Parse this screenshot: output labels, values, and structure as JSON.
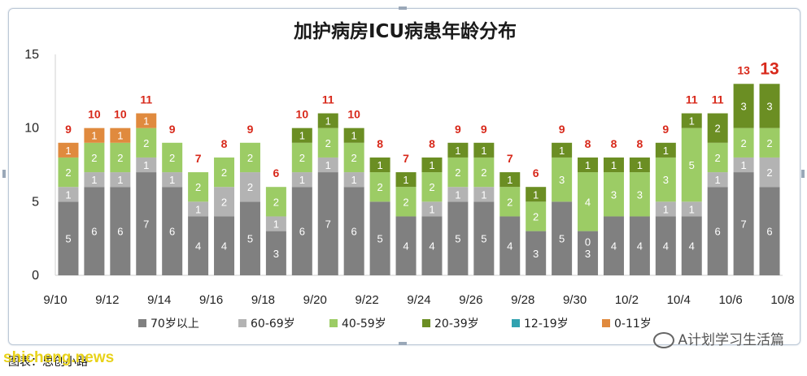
{
  "chart_data": {
    "type": "bar",
    "stacked": true,
    "title": "加护病房ICU病患年龄分布",
    "ylim": [
      0,
      15
    ],
    "yticks": [
      0,
      5,
      10,
      15
    ],
    "grid": false,
    "legend_position": "bottom",
    "x_tick_labels": [
      "9/10",
      "9/12",
      "9/14",
      "9/16",
      "9/18",
      "9/20",
      "9/22",
      "9/24",
      "9/26",
      "9/28",
      "9/30",
      "10/2",
      "10/4",
      "10/6",
      "10/8"
    ],
    "categories": [
      "9/10",
      "9/11",
      "9/12",
      "9/13",
      "9/14",
      "9/15",
      "9/16",
      "9/17",
      "9/18",
      "9/19",
      "9/20",
      "9/21",
      "9/22",
      "9/23",
      "9/24",
      "9/25",
      "9/26",
      "9/27",
      "9/28",
      "9/29",
      "9/30",
      "10/1",
      "10/2",
      "10/3",
      "10/4",
      "10/5",
      "10/6",
      "10/7"
    ],
    "series": [
      {
        "name": "70岁以上",
        "color": "#808080",
        "values": [
          5,
          6,
          6,
          7,
          6,
          4,
          4,
          5,
          3,
          6,
          7,
          6,
          5,
          4,
          4,
          5,
          5,
          4,
          3,
          5,
          3,
          4,
          4,
          4,
          4,
          6,
          7,
          6
        ]
      },
      {
        "name": "60-69岁",
        "color": "#b3b3b3",
        "values": [
          1,
          1,
          1,
          1,
          1,
          1,
          2,
          2,
          1,
          1,
          1,
          1,
          0,
          0,
          1,
          1,
          1,
          0,
          0,
          0,
          0,
          0,
          0,
          1,
          1,
          1,
          1,
          2
        ]
      },
      {
        "name": "40-59岁",
        "color": "#9ccc65",
        "values": [
          2,
          2,
          2,
          2,
          2,
          2,
          2,
          2,
          2,
          2,
          2,
          2,
          2,
          2,
          2,
          2,
          2,
          2,
          2,
          3,
          4,
          3,
          3,
          3,
          5,
          2,
          2,
          2
        ]
      },
      {
        "name": "20-39岁",
        "color": "#6b8e23",
        "values": [
          0,
          0,
          0,
          0,
          0,
          0,
          0,
          0,
          0,
          1,
          1,
          1,
          1,
          1,
          1,
          1,
          1,
          1,
          1,
          1,
          1,
          1,
          1,
          1,
          1,
          2,
          3,
          3
        ]
      },
      {
        "name": "12-19岁",
        "color": "#31a2b0",
        "values": [
          0,
          0,
          0,
          0,
          0,
          0,
          0,
          0,
          0,
          0,
          0,
          0,
          0,
          0,
          0,
          0,
          0,
          0,
          0,
          0,
          0,
          0,
          0,
          0,
          0,
          0,
          0,
          0
        ]
      },
      {
        "name": "0-11岁",
        "color": "#e08a3e",
        "values": [
          1,
          1,
          1,
          1,
          0,
          0,
          0,
          0,
          0,
          0,
          0,
          0,
          0,
          0,
          0,
          0,
          0,
          0,
          0,
          0,
          0,
          0,
          0,
          0,
          0,
          0,
          0,
          0
        ]
      }
    ],
    "segment_labels": [
      [
        5,
        6,
        6,
        7,
        6,
        4,
        4,
        5,
        3,
        6,
        7,
        6,
        5,
        4,
        4,
        5,
        5,
        4,
        3,
        5,
        3,
        4,
        4,
        4,
        4,
        6,
        7,
        6
      ],
      [
        1,
        1,
        1,
        1,
        1,
        1,
        2,
        2,
        1,
        1,
        1,
        1,
        null,
        null,
        1,
        1,
        1,
        null,
        null,
        null,
        0,
        null,
        null,
        1,
        1,
        1,
        1,
        2
      ],
      [
        2,
        2,
        2,
        2,
        2,
        2,
        2,
        2,
        2,
        2,
        2,
        2,
        2,
        2,
        2,
        2,
        2,
        2,
        2,
        3,
        4,
        3,
        3,
        3,
        5,
        2,
        2,
        2
      ],
      [
        null,
        null,
        null,
        null,
        null,
        null,
        null,
        null,
        null,
        1,
        1,
        1,
        1,
        1,
        1,
        1,
        1,
        1,
        1,
        1,
        1,
        1,
        1,
        1,
        1,
        2,
        3,
        3
      ],
      [
        null,
        null,
        null,
        null,
        null,
        null,
        null,
        null,
        null,
        null,
        null,
        null,
        null,
        null,
        null,
        null,
        null,
        null,
        null,
        null,
        null,
        null,
        null,
        null,
        null,
        null,
        null,
        null
      ],
      [
        1,
        1,
        1,
        1,
        null,
        null,
        null,
        null,
        null,
        null,
        null,
        null,
        null,
        null,
        null,
        null,
        null,
        null,
        null,
        null,
        null,
        null,
        null,
        null,
        null,
        null,
        null,
        null
      ]
    ],
    "totals": [
      9,
      10,
      10,
      11,
      9,
      7,
      8,
      9,
      6,
      10,
      11,
      10,
      8,
      7,
      8,
      9,
      9,
      7,
      6,
      9,
      8,
      8,
      8,
      9,
      11,
      11,
      13,
      13
    ],
    "highlight_total_index": 27
  },
  "footer": {
    "watermark": "A计划学习生活篇",
    "source": "图表：思创小路",
    "site": "shicheng.news"
  }
}
